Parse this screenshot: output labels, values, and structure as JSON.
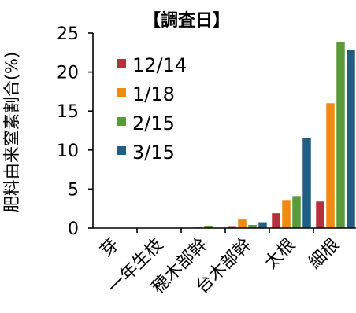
{
  "chart_data": {
    "type": "bar",
    "title": "【調査日】",
    "xlabel": "",
    "ylabel": "肥料由来窒素割合(%)",
    "ylim": [
      0,
      25
    ],
    "yticks": [
      0,
      5,
      10,
      15,
      20,
      25
    ],
    "grid": false,
    "legend_position": "top-left",
    "categories": [
      "芽",
      "一年生枝",
      "穂木部幹",
      "台木部幹",
      "太根",
      "細根"
    ],
    "series": [
      {
        "name": "12/14",
        "color": "#b5303a",
        "values": [
          0,
          0,
          0.05,
          0.15,
          1.9,
          3.4
        ]
      },
      {
        "name": "1/18",
        "color": "#f08a10",
        "values": [
          0,
          0,
          0.1,
          1.1,
          3.6,
          16.0
        ]
      },
      {
        "name": "2/15",
        "color": "#5a9a3a",
        "values": [
          0,
          0,
          0.3,
          0.4,
          4.1,
          23.8
        ]
      },
      {
        "name": "3/15",
        "color": "#1f5f86",
        "values": [
          0,
          0,
          0.05,
          0.75,
          11.5,
          22.8
        ]
      }
    ]
  }
}
